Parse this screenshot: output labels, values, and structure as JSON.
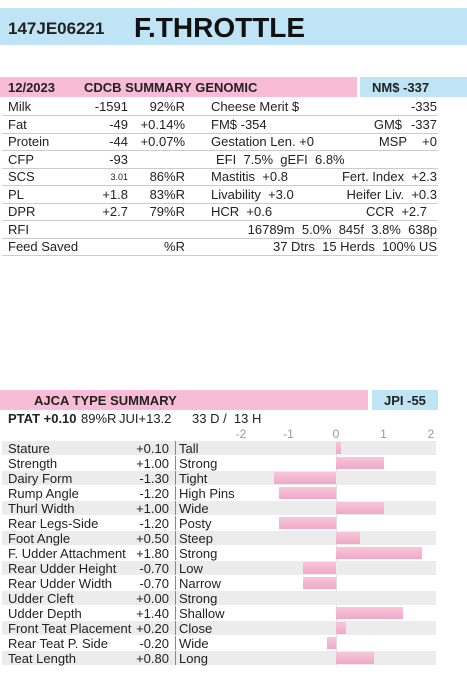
{
  "header": {
    "id": "147JE06221",
    "name": "F.THROTTLE"
  },
  "summary": {
    "date": "12/2023",
    "title": "CDCB SUMMARY GENOMIC",
    "index": "NM$ -337",
    "rows": [
      [
        "Milk",
        "-1591",
        "92%R",
        "Cheese Merit $",
        "-335"
      ],
      [
        "Fat",
        "-49",
        "+0.14%",
        "FM$ -354",
        "GM$",
        "-337"
      ],
      [
        "Protein",
        "-44",
        "+0.07%",
        "Gestation Len. +0",
        "MSP",
        "+0"
      ],
      [
        "CFP",
        "-93",
        "EFI  7.5%  gEFI  6.8%"
      ],
      [
        "SCS",
        "3.01",
        "86%R",
        "Mastitis  +0.8",
        "Fert. Index  +2.3"
      ],
      [
        "PL",
        "+1.8",
        "83%R",
        "Livability  +3.0",
        "Heifer Liv.  +0.3"
      ],
      [
        "DPR",
        "+2.7",
        "79%R",
        "HCR  +0.6",
        "CCR  +2.7"
      ],
      [
        "RFI",
        "16789m  5.0%  845f  3.8%  638p"
      ],
      [
        "Feed Saved",
        "%R",
        "37 Dtrs  15 Herds  100% US"
      ]
    ]
  },
  "type_summary": {
    "title": "AJCA TYPE SUMMARY",
    "index": "JPI -55",
    "ptat": "PTAT +0.10",
    "ptat_rel": "89%R",
    "jui": "JUI+13.2",
    "daughters": "33 D /  13 H",
    "axis_ticks": [
      -2,
      -1,
      0,
      1,
      2
    ],
    "traits": [
      "Stature",
      "Strength",
      "Dairy Form",
      "Rump Angle",
      "Thurl Width",
      "Rear Legs-Side",
      "Foot Angle",
      "F. Udder Attachment",
      "Rear Udder Height",
      "Rear Udder Width",
      "Udder Cleft",
      "Udder Depth",
      "Front Teat Placement",
      "Rear Teat P. Side",
      "Teat Length"
    ],
    "values": [
      0.1,
      1.0,
      -1.3,
      -1.2,
      1.0,
      -1.2,
      0.5,
      1.8,
      -0.7,
      -0.7,
      0.0,
      1.4,
      0.2,
      -0.2,
      0.8
    ],
    "value_labels": [
      "+0.10",
      "+1.00",
      "-1.30",
      "-1.20",
      "+1.00",
      "-1.20",
      "+0.50",
      "+1.80",
      "-0.70",
      "-0.70",
      "+0.00",
      "+1.40",
      "+0.20",
      "-0.20",
      "+0.80"
    ],
    "descriptors": [
      "Tall",
      "Strong",
      "Tight",
      "High Pins",
      "Wide",
      "Posty",
      "Steep",
      "Strong",
      "Low",
      "Narrow",
      "Strong",
      "Shallow",
      "Close",
      "Wide",
      "Long"
    ]
  }
}
